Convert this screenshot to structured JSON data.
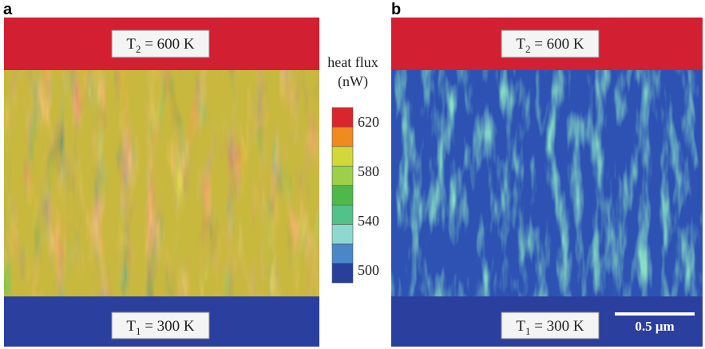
{
  "panels": [
    {
      "label": "a",
      "top": {
        "symbol": "T",
        "sub": "2",
        "rest": " = 600 K"
      },
      "bottom": {
        "symbol": "T",
        "sub": "1",
        "rest": " = 300 K"
      }
    },
    {
      "label": "b",
      "top": {
        "symbol": "T",
        "sub": "2",
        "rest": " = 600 K"
      },
      "bottom": {
        "symbol": "T",
        "sub": "1",
        "rest": " = 300 K"
      },
      "scale_bar": "0.5 μm"
    }
  ],
  "colorbar": {
    "title": "heat flux",
    "unit": "(nW)",
    "ticks": [
      "620",
      "580",
      "540",
      "500"
    ]
  }
}
